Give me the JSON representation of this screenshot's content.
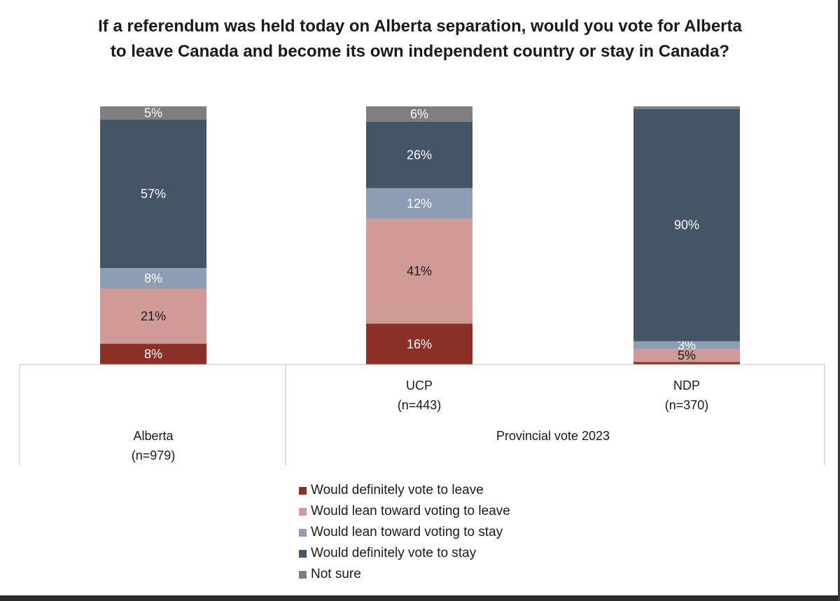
{
  "chart_data": {
    "type": "bar",
    "stacked": true,
    "normalized_percent": true,
    "title": "If a referendum was held today on Alberta separation, would you vote for Alberta to leave Canada and become its own independent country or stay in Canada?",
    "categories": [
      {
        "name": "Alberta",
        "n": "(n=979)"
      },
      {
        "name": "UCP",
        "n": "(n=443)"
      },
      {
        "name": "NDP",
        "n": "(n=370)"
      }
    ],
    "group_label": "Provincial vote 2023",
    "series": [
      {
        "name": "Would definitely vote to leave",
        "color": "#8b3028",
        "label_color": "#ffffff",
        "values": [
          8,
          16,
          1
        ],
        "labels": [
          "8%",
          "16%",
          ""
        ]
      },
      {
        "name": "Would lean toward voting to leave",
        "color": "#d09b97",
        "label_color": "#1a1a1a",
        "values": [
          21,
          41,
          5
        ],
        "labels": [
          "21%",
          "41%",
          "5%"
        ]
      },
      {
        "name": "Would lean toward voting to stay",
        "color": "#8e9db3",
        "label_color": "#ffffff",
        "values": [
          8,
          12,
          3
        ],
        "labels": [
          "8%",
          "12%",
          "3%"
        ]
      },
      {
        "name": "Would definitely vote to stay",
        "color": "#465468",
        "label_color": "#ffffff",
        "values": [
          57,
          26,
          90
        ],
        "labels": [
          "57%",
          "26%",
          "90%"
        ]
      },
      {
        "name": "Not sure",
        "color": "#7f7f7f",
        "label_color": "#ffffff",
        "values": [
          5,
          6,
          1
        ],
        "labels": [
          "5%",
          "6%",
          ""
        ]
      }
    ],
    "ylim": [
      0,
      100
    ]
  }
}
